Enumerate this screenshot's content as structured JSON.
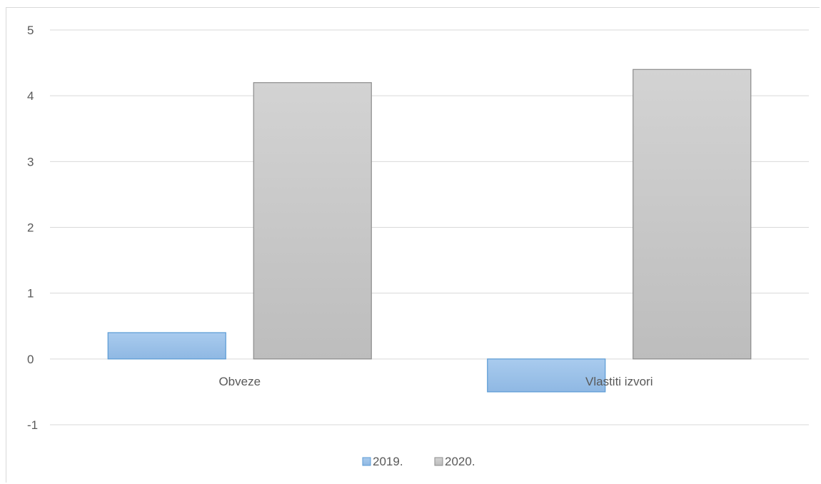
{
  "chart_data": {
    "type": "bar",
    "title": "",
    "xlabel": "",
    "ylabel": "",
    "categories": [
      "Obveze",
      "Vlastiti izvori"
    ],
    "series": [
      {
        "name": "2019.",
        "values": [
          0.4,
          -0.5
        ],
        "color": "#9dc3e6",
        "stroke": "#5b9bd5"
      },
      {
        "name": "2020.",
        "values": [
          4.2,
          4.4
        ],
        "color": "#c8c8c8",
        "stroke": "#8c8c8c"
      }
    ],
    "ylim": [
      -1,
      5
    ],
    "yticks": [
      5,
      4,
      3,
      2,
      1,
      0,
      -1
    ],
    "grid": true,
    "legend_position": "bottom"
  }
}
